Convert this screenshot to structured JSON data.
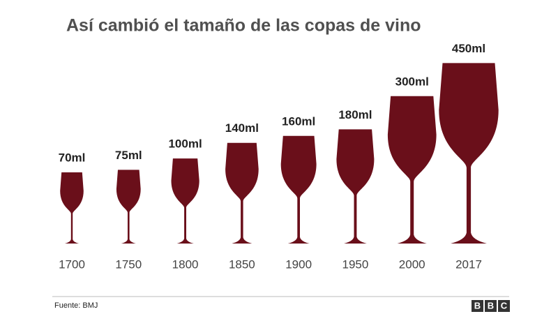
{
  "chart_data": {
    "type": "glass",
    "title": "Así cambió el tamaño de las copas de vino",
    "categories": [
      "1700",
      "1750",
      "1800",
      "1850",
      "1900",
      "1950",
      "2000",
      "2017"
    ],
    "values": [
      70,
      75,
      100,
      140,
      160,
      180,
      300,
      450
    ],
    "value_labels": [
      "70ml",
      "75ml",
      "100ml",
      "140ml",
      "160ml",
      "180ml",
      "300ml",
      "450ml"
    ],
    "color": "#6a0f1a",
    "source": "Fuente: BMJ",
    "logo": [
      "B",
      "B",
      "C"
    ]
  }
}
